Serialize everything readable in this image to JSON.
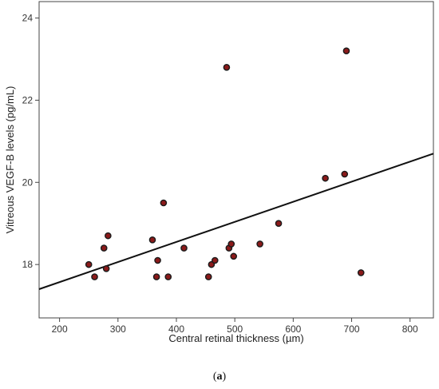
{
  "caption": {
    "open": "(",
    "letter": "a",
    "close": ")"
  },
  "chart_data": {
    "type": "scatter",
    "xlabel": "Central retinal thickness (µm)",
    "ylabel": "Vitreous VEGF-B levels (pg/mL)",
    "xlim": [
      165,
      840
    ],
    "ylim": [
      16.7,
      24.4
    ],
    "xticks": [
      200,
      300,
      400,
      500,
      600,
      700,
      800
    ],
    "yticks": [
      18,
      20,
      22,
      24
    ],
    "grid": false,
    "point_fill": "#8b1a1a",
    "point_stroke": "#1a1a1a",
    "fit_line": {
      "x": [
        165,
        840
      ],
      "y": [
        17.4,
        20.7
      ]
    },
    "points": [
      {
        "x": 250,
        "y": 18.0
      },
      {
        "x": 260,
        "y": 17.7
      },
      {
        "x": 276,
        "y": 18.4
      },
      {
        "x": 280,
        "y": 17.9
      },
      {
        "x": 283,
        "y": 18.7
      },
      {
        "x": 359,
        "y": 18.6
      },
      {
        "x": 366,
        "y": 17.7
      },
      {
        "x": 368,
        "y": 18.1
      },
      {
        "x": 378,
        "y": 19.5
      },
      {
        "x": 386,
        "y": 17.7
      },
      {
        "x": 413,
        "y": 18.4
      },
      {
        "x": 455,
        "y": 17.7
      },
      {
        "x": 460,
        "y": 18.0
      },
      {
        "x": 466,
        "y": 18.1
      },
      {
        "x": 486,
        "y": 22.8
      },
      {
        "x": 490,
        "y": 18.4
      },
      {
        "x": 494,
        "y": 18.5
      },
      {
        "x": 498,
        "y": 18.2
      },
      {
        "x": 543,
        "y": 18.5
      },
      {
        "x": 575,
        "y": 19.0
      },
      {
        "x": 655,
        "y": 20.1
      },
      {
        "x": 688,
        "y": 20.2
      },
      {
        "x": 691,
        "y": 23.2
      },
      {
        "x": 716,
        "y": 17.8
      }
    ]
  }
}
